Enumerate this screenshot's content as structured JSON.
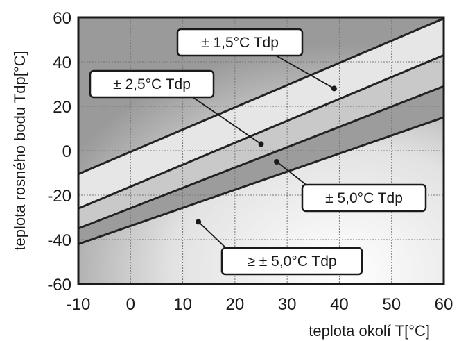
{
  "chart_data": {
    "type": "line",
    "xlabel": "teplota okolí  T[°C]",
    "ylabel": "teplota rosného bodu  Tdp[°C]",
    "xlim": [
      -10,
      60
    ],
    "ylim": [
      -60,
      60
    ],
    "x_ticks": [
      -10,
      0,
      10,
      20,
      30,
      40,
      50,
      60
    ],
    "y_ticks": [
      -60,
      -40,
      -20,
      0,
      20,
      40,
      60
    ],
    "x_tick_labels": [
      "-10",
      "0",
      "10",
      "20",
      "30",
      "40",
      "50",
      "60"
    ],
    "y_tick_labels": [
      "-60",
      "-40",
      "-20",
      "0",
      "20",
      "40",
      "60"
    ],
    "grid": true,
    "series": [
      {
        "x": [
          -10,
          60
        ],
        "values": [
          -10.5,
          59.5
        ]
      },
      {
        "x": [
          -10,
          60
        ],
        "values": [
          -26,
          43
        ]
      },
      {
        "x": [
          -10,
          60
        ],
        "values": [
          -35,
          29
        ]
      },
      {
        "x": [
          -10,
          60
        ],
        "values": [
          -42,
          15
        ]
      }
    ],
    "annotations": [
      {
        "label": "± 1,5°C Tdp",
        "point": [
          39,
          28
        ]
      },
      {
        "label": "± 2,5°C Tdp",
        "point": [
          25,
          3
        ]
      },
      {
        "label": "± 5,0°C Tdp",
        "point": [
          28,
          -5
        ]
      },
      {
        "label": "≥ ± 5,0°C Tdp",
        "point": [
          13,
          -32
        ]
      }
    ],
    "colors": {
      "line": "#222222",
      "band_top": "#e6e6e6",
      "band_middle": "#c9c9c9",
      "band_bottom": "#9c9c9c",
      "grid": "#777777"
    }
  }
}
